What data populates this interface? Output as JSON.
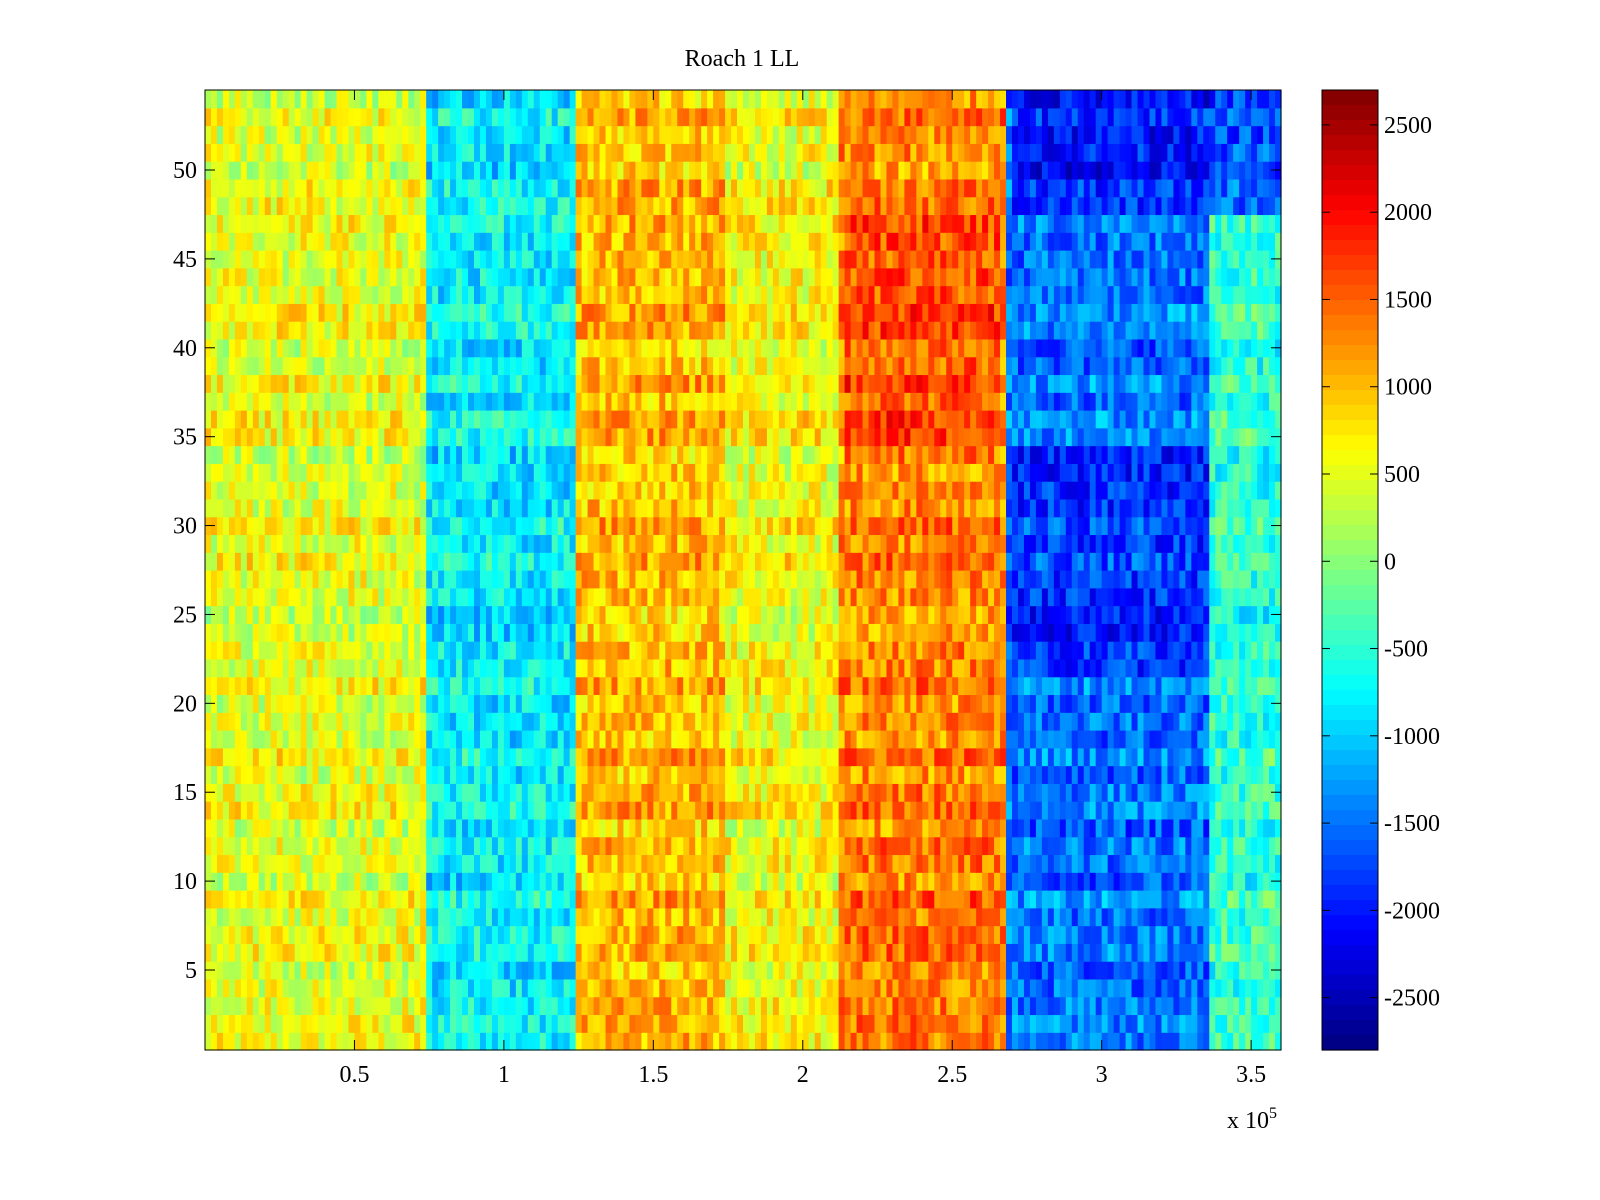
{
  "chart_data": {
    "type": "heatmap",
    "title": "Roach 1 LL",
    "xlabel": "",
    "ylabel": "",
    "x_multiplier_label": "x 10",
    "x_multiplier_exponent": "5",
    "xlim": [
      0,
      360000
    ],
    "ylim": [
      0.5,
      54.5
    ],
    "x_ticks": [
      50000,
      100000,
      150000,
      200000,
      250000,
      300000,
      350000
    ],
    "x_tick_labels": [
      "0.5",
      "1",
      "1.5",
      "2",
      "2.5",
      "3",
      "3.5"
    ],
    "y_ticks": [
      5,
      10,
      15,
      20,
      25,
      30,
      35,
      40,
      45,
      50
    ],
    "y_tick_labels": [
      "5",
      "10",
      "15",
      "20",
      "25",
      "30",
      "35",
      "40",
      "45",
      "50"
    ],
    "rows": 54,
    "colormap": "jet",
    "clim": [
      -2800,
      2700
    ],
    "colorbar_ticks": [
      2500,
      2000,
      1500,
      1000,
      500,
      0,
      -500,
      -1000,
      -1500,
      -2000,
      -2500
    ],
    "colorbar_tick_labels": [
      "2500",
      "2000",
      "1500",
      "1000",
      "500",
      "0",
      "-500",
      "-1000",
      "-1500",
      "-2000",
      "-2500"
    ],
    "grid": false,
    "x_segments": [
      {
        "x_start": 0,
        "x_end": 75000,
        "typical_value": 500
      },
      {
        "x_start": 75000,
        "x_end": 125000,
        "typical_value": -800
      },
      {
        "x_start": 125000,
        "x_end": 175000,
        "typical_value": 1000
      },
      {
        "x_start": 175000,
        "x_end": 213000,
        "typical_value": 600
      },
      {
        "x_start": 213000,
        "x_end": 268000,
        "typical_value": 1300
      },
      {
        "x_start": 268000,
        "x_end": 336000,
        "typical_value": -1500
      },
      {
        "x_start": 336000,
        "x_end": 360000,
        "typical_value": -500
      }
    ],
    "notable_regions": [
      {
        "x": [
          270000,
          360000
        ],
        "y": [
          48,
          54
        ],
        "value": -2200
      },
      {
        "x": [
          270000,
          336000
        ],
        "y": [
          22,
          34
        ],
        "value": -2000
      },
      {
        "x": [
          215000,
          265000
        ],
        "y": [
          34,
          47
        ],
        "value": 1700
      },
      {
        "x": [
          215000,
          265000
        ],
        "y": [
          5,
          12
        ],
        "value": 1400
      }
    ]
  }
}
